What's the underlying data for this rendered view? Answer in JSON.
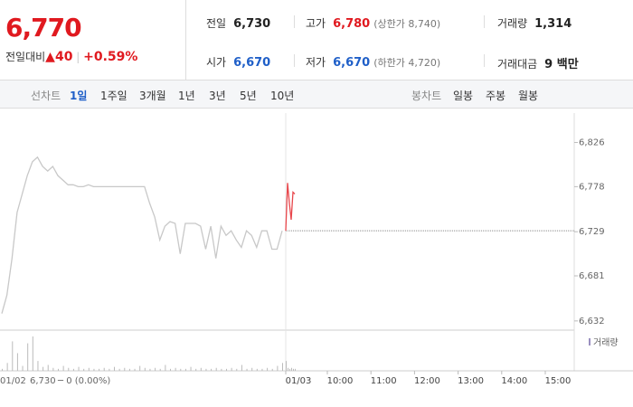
{
  "header": {
    "price": "6,770",
    "change_label": "전일대비",
    "change": "40",
    "change_pct": "+0.59%"
  },
  "info": [
    {
      "label": "전일",
      "value": "6,730"
    },
    {
      "label": "고가",
      "value": "6,780",
      "note": "(상한가 8,740)"
    },
    {
      "label": "거래량",
      "value": "1,314"
    },
    {
      "label": "시가",
      "value": "6,670"
    },
    {
      "label": "저가",
      "value": "6,670",
      "note": "(하한가 4,720)"
    },
    {
      "label": "거래대금",
      "value": "9 백만"
    }
  ],
  "tabs": {
    "line_label": "선차트",
    "line_tabs": [
      "1일",
      "1주일",
      "3개월",
      "1년",
      "3년",
      "5년",
      "10년"
    ],
    "candle_label": "봉차트",
    "candle_tabs": [
      "일봉",
      "주봉",
      "월봉"
    ]
  },
  "chart_data": {
    "type": "line",
    "ylim": [
      6622,
      6858
    ],
    "yticks": [
      {
        "value": 6826,
        "label": "6,826"
      },
      {
        "value": 6778,
        "label": "6,778"
      },
      {
        "value": 6729,
        "label": "6,729"
      },
      {
        "value": 6681,
        "label": "6,681"
      },
      {
        "value": 6632,
        "label": "6,632"
      }
    ],
    "reference": 6730,
    "series": [
      {
        "color": "#c8c8c8",
        "values": [
          6640,
          6660,
          6700,
          6750,
          6770,
          6790,
          6805,
          6810,
          6800,
          6795,
          6800,
          6790,
          6785,
          6780,
          6780,
          6778,
          6778,
          6780,
          6778,
          6778,
          6778,
          6778,
          6778,
          6778,
          6778,
          6778,
          6778,
          6778,
          6778,
          6760,
          6745,
          6720,
          6735,
          6740,
          6738,
          6705,
          6738,
          6738,
          6738,
          6735,
          6710,
          6735,
          6700,
          6735,
          6725,
          6730,
          6720,
          6712,
          6730,
          6725,
          6712,
          6730,
          6730,
          6710,
          6710,
          6730
        ]
      },
      {
        "color": "#e8464b",
        "values": [
          6730,
          6782,
          6760,
          6742,
          6772,
          6770
        ]
      }
    ],
    "volume_label": "거래량",
    "volume_color": "#bbbbbb",
    "volume": [
      2,
      8,
      30,
      18,
      5,
      28,
      35,
      10,
      4,
      6,
      3,
      2,
      5,
      3,
      2,
      4,
      2,
      3,
      2,
      2,
      3,
      2,
      4,
      2,
      3,
      2,
      2,
      5,
      3,
      2,
      3,
      2,
      6,
      2,
      3,
      2,
      2,
      4,
      2,
      3,
      2,
      2,
      3,
      2,
      2,
      3,
      2,
      6,
      2,
      3,
      2,
      2,
      3,
      2,
      5,
      8
    ],
    "today_volume": [
      10,
      3,
      2,
      3,
      2,
      2
    ],
    "xtick_labels": [
      "01/03",
      "10:00",
      "11:00",
      "12:00",
      "13:00",
      "14:00",
      "15:00"
    ],
    "footer": {
      "date": "01/02",
      "close": "6,730",
      "change": "─ 0 (0.00%)"
    }
  }
}
